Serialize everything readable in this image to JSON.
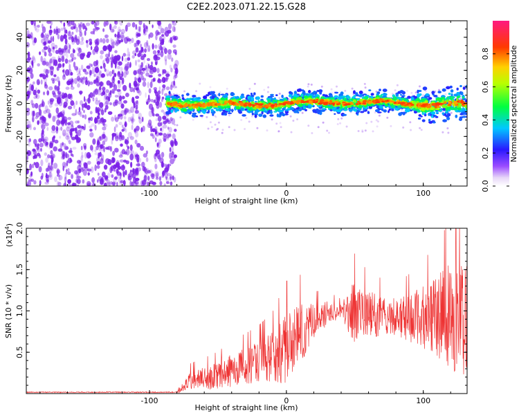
{
  "title": "C2E2.2023.071.22.15.G28",
  "colors": {
    "purple": "#7a1fe8",
    "snr_line": "#ee3333",
    "axis": "#000000"
  },
  "chart_data": [
    {
      "type": "heatmap",
      "xlabel": "Height of straight line (km)",
      "ylabel": "Frequency (Hz)",
      "xlim": [
        -190,
        132
      ],
      "ylim": [
        -50,
        50
      ],
      "xticks": [
        -100,
        0,
        100
      ],
      "xtick_labels": [
        "-100",
        "0",
        "100"
      ],
      "yticks": [
        -40,
        -20,
        0,
        20,
        40
      ],
      "ytick_labels": [
        "-40",
        "-20",
        "0",
        "20",
        "40"
      ],
      "colorbar": {
        "label": "Normalized spectral amplitude",
        "range": [
          0,
          1
        ],
        "ticks": [
          0.0,
          0.2,
          0.4,
          0.6,
          0.8
        ],
        "tick_labels": [
          "0.0",
          "0.2",
          "0.4",
          "0.6",
          "0.8"
        ],
        "colormap": "rainbow (white-violet-blue-cyan-green-yellow-red-magenta)"
      },
      "noise_region_end_km": -82,
      "signal_ridge_frequency_hz": 0
    },
    {
      "type": "line",
      "xlabel": "Height of straight line (km)",
      "ylabel": "SNR (10 * v/v)",
      "yscale_label": "(x10",
      "yscale_exp": "4",
      "yscale_close": ")",
      "xlim": [
        -190,
        132
      ],
      "ylim": [
        0,
        2.0
      ],
      "xticks": [
        -100,
        0,
        100
      ],
      "xtick_labels": [
        "-100",
        "0",
        "100"
      ],
      "yticks": [
        0.5,
        1.0,
        1.5,
        2.0
      ],
      "ytick_labels": [
        "0.5",
        "1.0",
        "1.5",
        "2.0"
      ],
      "envelope": {
        "x": [
          -190,
          -80,
          -70,
          -60,
          -50,
          -40,
          -30,
          -20,
          -10,
          0,
          10,
          20,
          30,
          40,
          50,
          60,
          70,
          80,
          90,
          100,
          110,
          120,
          132
        ],
        "base": [
          0.01,
          0.01,
          0.15,
          0.18,
          0.22,
          0.28,
          0.33,
          0.38,
          0.45,
          0.55,
          0.72,
          0.88,
          0.97,
          1.0,
          0.98,
          0.96,
          0.94,
          0.93,
          0.91,
          0.92,
          0.93,
          0.93,
          0.9
        ],
        "amp": [
          0.01,
          0.01,
          0.12,
          0.14,
          0.16,
          0.2,
          0.22,
          0.25,
          0.3,
          0.45,
          0.4,
          0.2,
          0.15,
          0.08,
          0.4,
          0.28,
          0.25,
          0.22,
          0.3,
          0.38,
          0.5,
          0.65,
          0.7
        ]
      }
    }
  ]
}
